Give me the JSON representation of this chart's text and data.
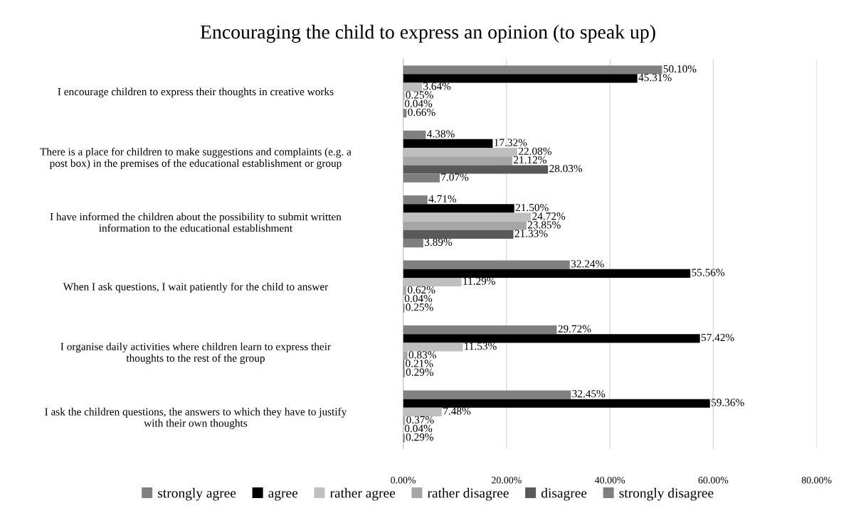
{
  "chart_data": {
    "type": "bar",
    "orientation": "horizontal",
    "title": "Encouraging the child to express an opinion (to speak up)",
    "categories": [
      "I encourage children to express their thoughts in creative works",
      "There is a place for children to make suggestions and complaints (e.g. a post box) in the premises of the educational establishment or group",
      "I have informed the children about the possibility to submit written information to the educational establishment",
      "When I ask questions, I wait patiently for the child to answer",
      "I organise daily activities where children learn to express their thoughts to the rest of the group",
      "I ask the children questions, the answers to which they have to justify with their own thoughts"
    ],
    "series": [
      {
        "name": "strongly agree",
        "color": "#808080",
        "values": [
          50.1,
          4.38,
          4.71,
          32.24,
          29.72,
          32.45
        ],
        "value_labels": [
          "50.10%",
          "4.38%",
          "4.71%",
          "32.24%",
          "29.72%",
          "32.45%"
        ]
      },
      {
        "name": "agree",
        "color": "#000000",
        "values": [
          45.31,
          17.32,
          21.5,
          55.56,
          57.42,
          59.36
        ],
        "value_labels": [
          "45.31%",
          "17.32%",
          "21.50%",
          "55.56%",
          "57.42%",
          "59.36%"
        ]
      },
      {
        "name": "rather agree",
        "color": "#bfbfbf",
        "values": [
          3.64,
          22.08,
          24.72,
          11.29,
          11.53,
          7.48
        ],
        "value_labels": [
          "3.64%",
          "22.08%",
          "24.72%",
          "11.29%",
          "11.53%",
          "7.48%"
        ]
      },
      {
        "name": "rather disagree",
        "color": "#a6a6a6",
        "values": [
          0.25,
          21.12,
          23.85,
          0.62,
          0.83,
          0.37
        ],
        "value_labels": [
          "0.25%",
          "21.12%",
          "23.85%",
          "0.62%",
          "0.83%",
          "0.37%"
        ]
      },
      {
        "name": "disagree",
        "color": "#595959",
        "values": [
          0.04,
          28.03,
          21.33,
          0.04,
          0.21,
          0.04
        ],
        "value_labels": [
          "0.04%",
          "28.03%",
          "21.33%",
          "0.04%",
          "0.21%",
          "0.04%"
        ]
      },
      {
        "name": "strongly disagree",
        "color": "#7f7f7f",
        "values": [
          0.66,
          7.07,
          3.89,
          0.25,
          0.29,
          0.29
        ],
        "value_labels": [
          "0.66%",
          "7.07%",
          "3.89%",
          "0.25%",
          "0.29%",
          "0.29%"
        ]
      }
    ],
    "xlim": [
      0,
      80
    ],
    "xticks": [
      {
        "value": 0,
        "label": "0.00%"
      },
      {
        "value": 20,
        "label": "20.00%"
      },
      {
        "value": 40,
        "label": "40.00%"
      },
      {
        "value": 60,
        "label": "60.00%"
      },
      {
        "value": 80,
        "label": "80.00%"
      }
    ],
    "grid": "x",
    "legend": "bottom"
  }
}
